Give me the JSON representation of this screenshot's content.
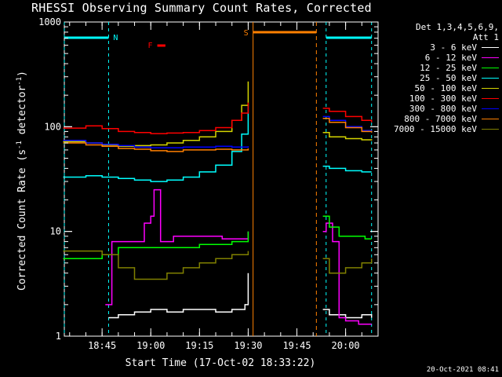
{
  "title": "RHESSI Observing Summary Count Rates, Corrected",
  "timestamp": "20-Oct-2021 08:41",
  "legend": {
    "header_line1": "Det 1,3,4,5,6,9,",
    "header_line2": "Att 1",
    "entries": [
      {
        "label": "3 - 6 keV",
        "color": "#ffffff"
      },
      {
        "label": "6 - 12 keV",
        "color": "#ff00ff"
      },
      {
        "label": "12 - 25 keV",
        "color": "#00ff00"
      },
      {
        "label": "25 - 50 keV",
        "color": "#00ffff"
      },
      {
        "label": "50 - 100 keV",
        "color": "#d4d400"
      },
      {
        "label": "100 - 300 keV",
        "color": "#ff0000"
      },
      {
        "label": "300 - 800 keV",
        "color": "#0000ff"
      },
      {
        "label": "800 - 7000 keV",
        "color": "#ff8000"
      },
      {
        "label": "7000 - 15000 keV",
        "color": "#808000"
      }
    ]
  },
  "flags": {
    "night": "N",
    "flare": "F",
    "saa": "S"
  },
  "chart_data": {
    "type": "line",
    "title": "RHESSI Observing Summary Count Rates, Corrected",
    "xlabel": "Start Time (17-Oct-02 18:33:22)",
    "ylabel_main": "Corrected Count Rate (s",
    "ylabel_sup1": "-1",
    "ylabel_mid": " detector",
    "ylabel_sup2": "-1",
    "ylabel_end": ")",
    "y_scale": "log",
    "ylim": [
      1,
      1000
    ],
    "xlim": [
      "18:33:22",
      "20:10:00"
    ],
    "x_ticks": [
      "18:45",
      "19:00",
      "19:15",
      "19:30",
      "19:45",
      "20:00"
    ],
    "y_ticks": [
      "1",
      "10",
      "100",
      "1000"
    ],
    "gap": [
      "19:30:30",
      "19:53:00"
    ],
    "series": [
      {
        "name": "3 - 6 keV",
        "color": "#ffffff",
        "times": [
          "18:47",
          "18:50",
          "18:55",
          "19:00",
          "19:05",
          "19:10",
          "19:15",
          "19:20",
          "19:25",
          "19:29",
          "19:30"
        ],
        "values": [
          1.5,
          1.6,
          1.7,
          1.8,
          1.7,
          1.8,
          1.8,
          1.7,
          1.8,
          2.0,
          4.0
        ],
        "times2": [
          "19:53",
          "19:55",
          "20:00",
          "20:05",
          "20:08"
        ],
        "values2": [
          1.8,
          1.6,
          1.5,
          1.6,
          1.5
        ]
      },
      {
        "name": "6 - 12 keV",
        "color": "#ff00ff",
        "times": [
          "18:46",
          "18:48",
          "18:52",
          "18:56",
          "18:58",
          "19:00",
          "19:01",
          "19:03",
          "19:07",
          "19:12",
          "19:17",
          "19:22",
          "19:27",
          "19:30"
        ],
        "values": [
          2.0,
          8.0,
          8.0,
          8.0,
          12.0,
          14.0,
          25.0,
          8.0,
          9.0,
          9.0,
          9.0,
          8.5,
          8.5,
          10.0
        ],
        "times2": [
          "19:53",
          "19:54",
          "19:56",
          "19:58",
          "20:00",
          "20:04",
          "20:08"
        ],
        "values2": [
          10.0,
          12.0,
          8.0,
          1.5,
          1.4,
          1.3,
          1.3
        ]
      },
      {
        "name": "12 - 25 keV",
        "color": "#00ff00",
        "times": [
          "18:33",
          "18:40",
          "18:45",
          "18:50",
          "18:55",
          "19:00",
          "19:05",
          "19:10",
          "19:15",
          "19:20",
          "19:25",
          "19:30"
        ],
        "values": [
          5.5,
          5.5,
          6.0,
          7.0,
          7.0,
          7.0,
          7.0,
          7.0,
          7.5,
          7.5,
          8.0,
          10.0
        ],
        "times2": [
          "19:53",
          "19:55",
          "19:58",
          "20:02",
          "20:06",
          "20:08"
        ],
        "values2": [
          14.0,
          11.0,
          9.0,
          9.0,
          8.5,
          8.5
        ]
      },
      {
        "name": "25 - 50 keV",
        "color": "#00ffff",
        "times": [
          "18:33",
          "18:40",
          "18:45",
          "18:50",
          "18:55",
          "19:00",
          "19:05",
          "19:10",
          "19:15",
          "19:20",
          "19:25",
          "19:28",
          "19:30"
        ],
        "values": [
          33,
          34,
          33,
          32,
          31,
          30,
          31,
          33,
          37,
          43,
          58,
          85,
          160
        ],
        "times2": [
          "19:53",
          "19:55",
          "20:00",
          "20:05",
          "20:08"
        ],
        "values2": [
          42,
          40,
          38,
          37,
          37
        ]
      },
      {
        "name": "50 - 100 keV",
        "color": "#d4d400",
        "times": [
          "18:33",
          "18:40",
          "18:45",
          "18:50",
          "18:55",
          "19:00",
          "19:05",
          "19:10",
          "19:15",
          "19:20",
          "19:25",
          "19:28",
          "19:30"
        ],
        "values": [
          72,
          70,
          67,
          65,
          66,
          67,
          70,
          74,
          80,
          90,
          115,
          160,
          270
        ],
        "times2": [
          "19:53",
          "19:55",
          "20:00",
          "20:05",
          "20:08"
        ],
        "values2": [
          88,
          80,
          77,
          75,
          74
        ]
      },
      {
        "name": "100 - 300 keV",
        "color": "#ff0000",
        "times": [
          "18:33",
          "18:40",
          "18:45",
          "18:50",
          "18:55",
          "19:00",
          "19:05",
          "19:10",
          "19:15",
          "19:20",
          "19:25",
          "19:28",
          "19:30"
        ],
        "values": [
          97,
          102,
          96,
          90,
          88,
          86,
          87,
          88,
          92,
          98,
          115,
          135,
          170
        ],
        "times2": [
          "19:53",
          "19:55",
          "20:00",
          "20:05",
          "20:08"
        ],
        "values2": [
          150,
          140,
          125,
          115,
          110
        ]
      },
      {
        "name": "300 - 800 keV",
        "color": "#0000ff",
        "times": [
          "18:33",
          "18:40",
          "18:45",
          "18:50",
          "18:55",
          "19:00",
          "19:05",
          "19:10",
          "19:15",
          "19:20",
          "19:25",
          "19:30"
        ],
        "values": [
          74,
          70,
          68,
          66,
          64,
          63,
          63,
          64,
          64,
          65,
          64,
          65
        ],
        "times2": [
          "19:53",
          "19:55",
          "20:00",
          "20:05",
          "20:08"
        ],
        "values2": [
          125,
          115,
          100,
          92,
          90
        ]
      },
      {
        "name": "800 - 7000 keV",
        "color": "#ff8000",
        "times": [
          "18:33",
          "18:40",
          "18:45",
          "18:50",
          "18:55",
          "19:00",
          "19:05",
          "19:10",
          "19:15",
          "19:20",
          "19:25",
          "19:30"
        ],
        "values": [
          70,
          67,
          65,
          62,
          61,
          59,
          58,
          60,
          60,
          61,
          60,
          62
        ],
        "times2": [
          "19:53",
          "19:55",
          "20:00",
          "20:05",
          "20:08"
        ],
        "values2": [
          120,
          110,
          98,
          90,
          88
        ]
      },
      {
        "name": "7000 - 15000 keV",
        "color": "#808000",
        "times": [
          "18:33",
          "18:40",
          "18:45",
          "18:50",
          "18:55",
          "19:00",
          "19:05",
          "19:10",
          "19:15",
          "19:20",
          "19:25",
          "19:30"
        ],
        "values": [
          6.5,
          6.5,
          6.0,
          4.5,
          3.5,
          3.5,
          4.0,
          4.5,
          5.0,
          5.5,
          6.0,
          6.5
        ],
        "times2": [
          "19:53",
          "19:55",
          "20:00",
          "20:05",
          "20:08"
        ],
        "values2": [
          5.5,
          4.0,
          4.5,
          5.0,
          5.5
        ]
      }
    ],
    "night_segments": [
      [
        "18:33:22",
        "18:47:00"
      ],
      [
        "19:54:00",
        "20:08:00"
      ]
    ],
    "saa_segment": [
      "19:31:30",
      "19:51:00"
    ],
    "flare_marker": [
      "19:02:00",
      "19:04:30"
    ]
  }
}
